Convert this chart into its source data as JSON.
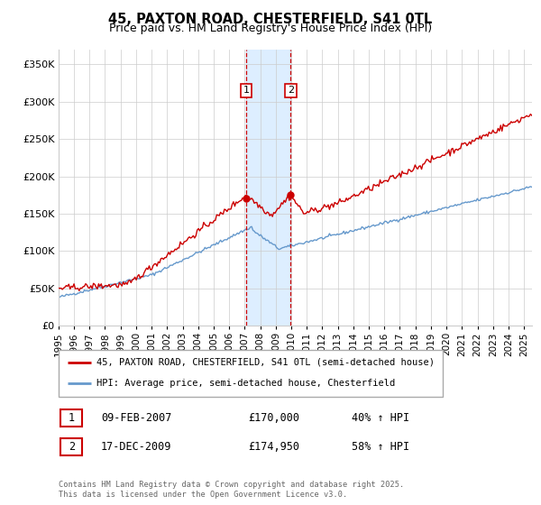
{
  "title": "45, PAXTON ROAD, CHESTERFIELD, S41 0TL",
  "subtitle": "Price paid vs. HM Land Registry's House Price Index (HPI)",
  "legend_line1": "45, PAXTON ROAD, CHESTERFIELD, S41 0TL (semi-detached house)",
  "legend_line2": "HPI: Average price, semi-detached house, Chesterfield",
  "sale1_date": "09-FEB-2007",
  "sale1_price": "£170,000",
  "sale1_hpi": "40% ↑ HPI",
  "sale1_year": 2007.1,
  "sale1_value": 170000,
  "sale2_date": "17-DEC-2009",
  "sale2_price": "£174,950",
  "sale2_hpi": "58% ↑ HPI",
  "sale2_year": 2009.96,
  "sale2_value": 174950,
  "red_color": "#cc0000",
  "blue_color": "#6699cc",
  "shade_color": "#ddeeff",
  "footer": "Contains HM Land Registry data © Crown copyright and database right 2025.\nThis data is licensed under the Open Government Licence v3.0.",
  "ylim": [
    0,
    370000
  ],
  "xlim_start": 1995,
  "xlim_end": 2025.5,
  "yticks": [
    0,
    50000,
    100000,
    150000,
    200000,
    250000,
    300000,
    350000
  ],
  "ytick_labels": [
    "£0",
    "£50K",
    "£100K",
    "£150K",
    "£200K",
    "£250K",
    "£300K",
    "£350K"
  ],
  "xticks": [
    1995,
    1996,
    1997,
    1998,
    1999,
    2000,
    2001,
    2002,
    2003,
    2004,
    2005,
    2006,
    2007,
    2008,
    2009,
    2010,
    2011,
    2012,
    2013,
    2014,
    2015,
    2016,
    2017,
    2018,
    2019,
    2020,
    2021,
    2022,
    2023,
    2024,
    2025
  ]
}
